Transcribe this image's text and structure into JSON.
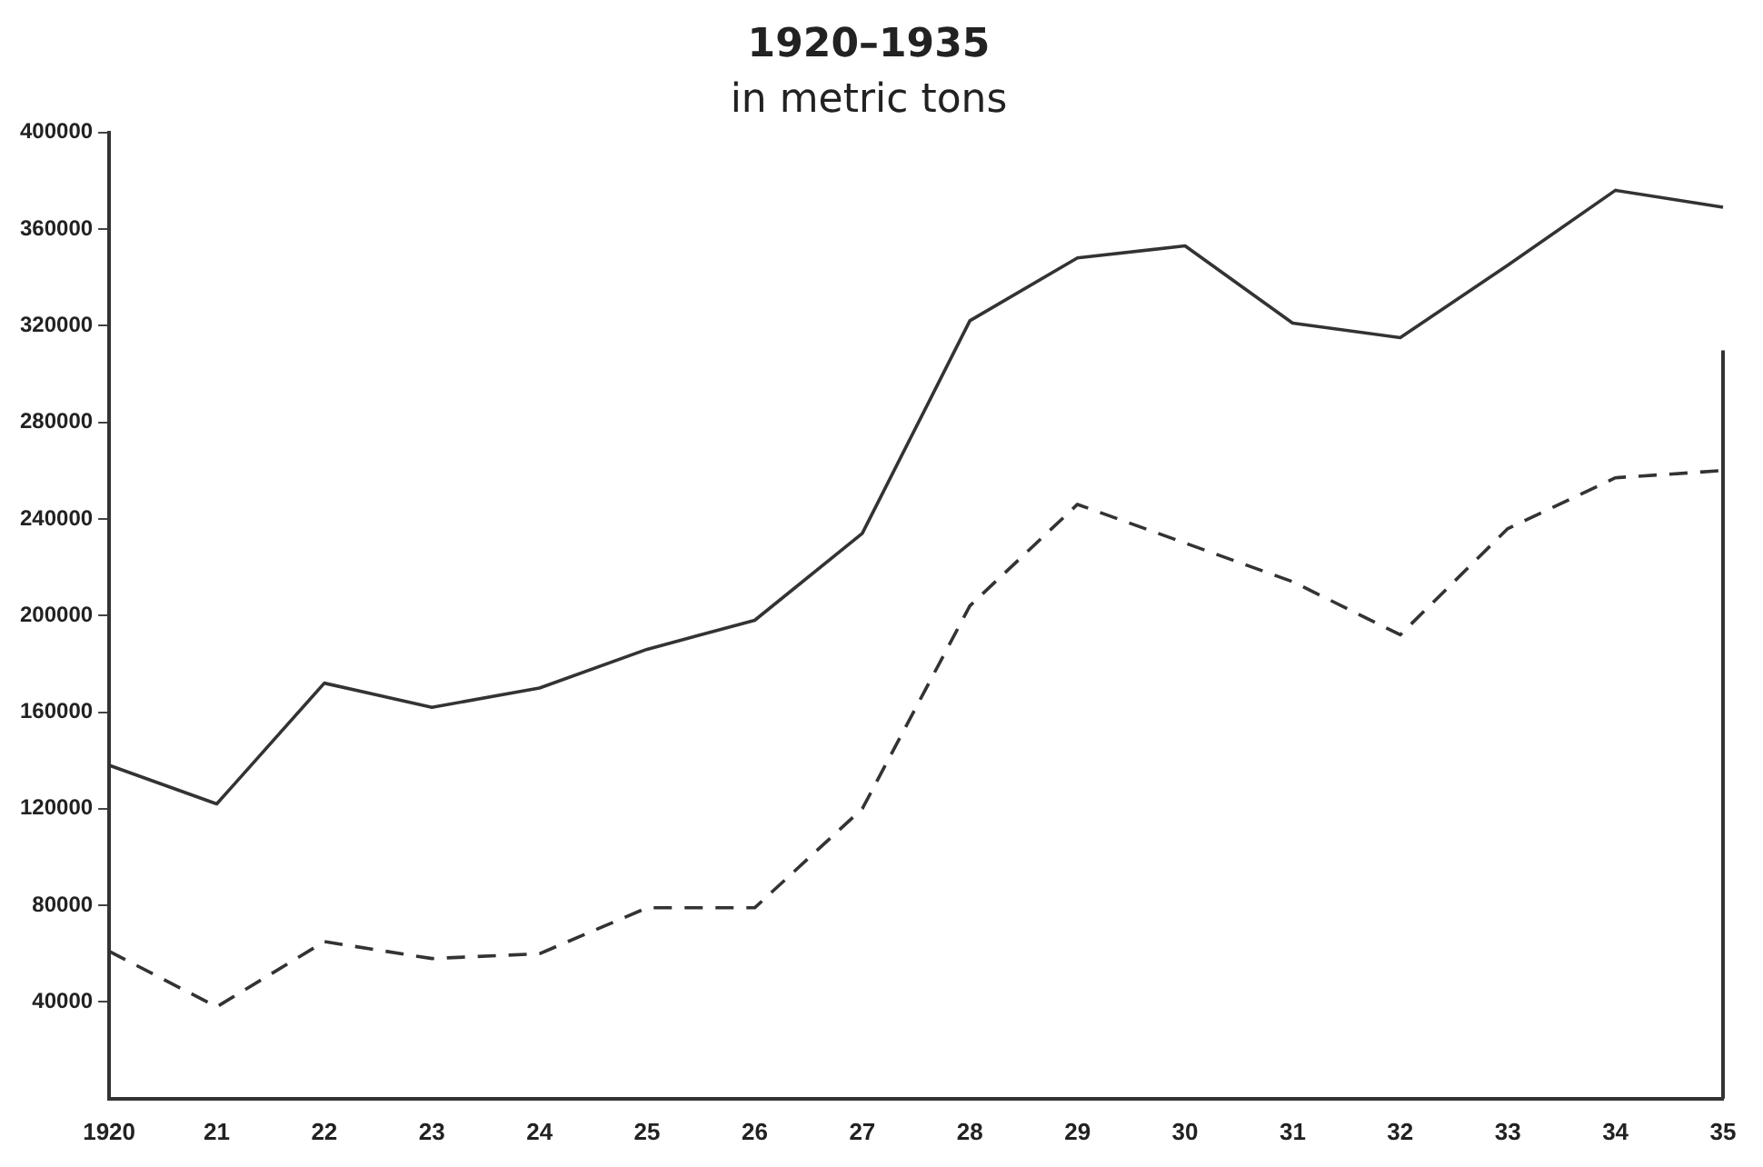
{
  "chart_data": {
    "type": "line",
    "title": "1920–1935",
    "subtitle": "in metric tons",
    "categories": [
      "1920",
      "21",
      "22",
      "23",
      "24",
      "25",
      "26",
      "27",
      "28",
      "29",
      "30",
      "31",
      "32",
      "33",
      "34",
      "35"
    ],
    "series": [
      {
        "color": "#333333",
        "line_style": "solid",
        "values": [
          138000,
          122000,
          172000,
          162000,
          170000,
          186000,
          198000,
          234000,
          322000,
          348000,
          353000,
          321000,
          315000,
          345000,
          376000,
          369000
        ]
      },
      {
        "color": "#333333",
        "line_style": "dashed",
        "values": [
          61000,
          38000,
          65000,
          58000,
          60000,
          79000,
          79000,
          120000,
          204000,
          246000,
          230000,
          214000,
          192000,
          236000,
          257000,
          260000
        ]
      }
    ],
    "ylim": [
      0,
      400000
    ],
    "yticks": [
      40000,
      80000,
      120000,
      160000,
      200000,
      240000,
      280000,
      320000,
      360000,
      400000
    ],
    "grid": false,
    "legend": false,
    "marker": "none"
  }
}
